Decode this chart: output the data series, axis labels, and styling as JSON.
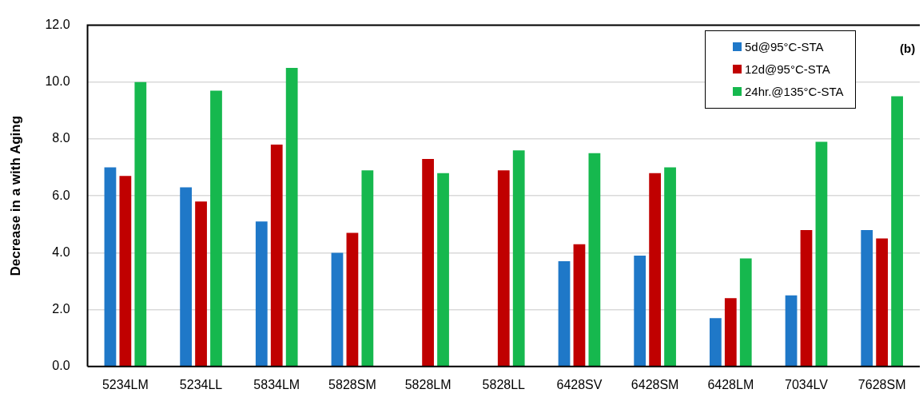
{
  "chart_data": {
    "type": "bar",
    "ylabel": "Decrease in a with Aging",
    "annotations": [
      "(b)"
    ],
    "categories": [
      "5234LM",
      "5234LL",
      "5834LM",
      "5828SM",
      "5828LM",
      "5828LL",
      "6428SV",
      "6428SM",
      "6428LM",
      "7034LV",
      "7628SM"
    ],
    "series": [
      {
        "name": "5d@95°C-STA",
        "color": "#1f78c8",
        "values": [
          7.0,
          6.3,
          5.1,
          4.0,
          null,
          null,
          3.7,
          3.9,
          1.7,
          2.5,
          4.8
        ]
      },
      {
        "name": "12d@95°C-STA",
        "color": "#c00000",
        "values": [
          6.7,
          5.8,
          7.8,
          4.7,
          7.3,
          6.9,
          4.3,
          6.8,
          2.4,
          4.8,
          4.5
        ]
      },
      {
        "name": "24hr.@135°C-STA",
        "color": "#16b84e",
        "values": [
          10.0,
          9.7,
          10.5,
          6.9,
          6.8,
          7.6,
          7.5,
          7.0,
          3.8,
          7.9,
          9.5
        ]
      }
    ],
    "ylim": [
      0,
      12
    ],
    "yticks": [
      {
        "value": 0,
        "label": "0.0"
      },
      {
        "value": 2,
        "label": "2.0"
      },
      {
        "value": 4,
        "label": "4.0"
      },
      {
        "value": 6,
        "label": "6.0"
      },
      {
        "value": 8,
        "label": "8.0"
      },
      {
        "value": 10,
        "label": "10.0"
      },
      {
        "value": 12,
        "label": "12.0"
      }
    ],
    "grid": "y",
    "legend": "top right"
  }
}
